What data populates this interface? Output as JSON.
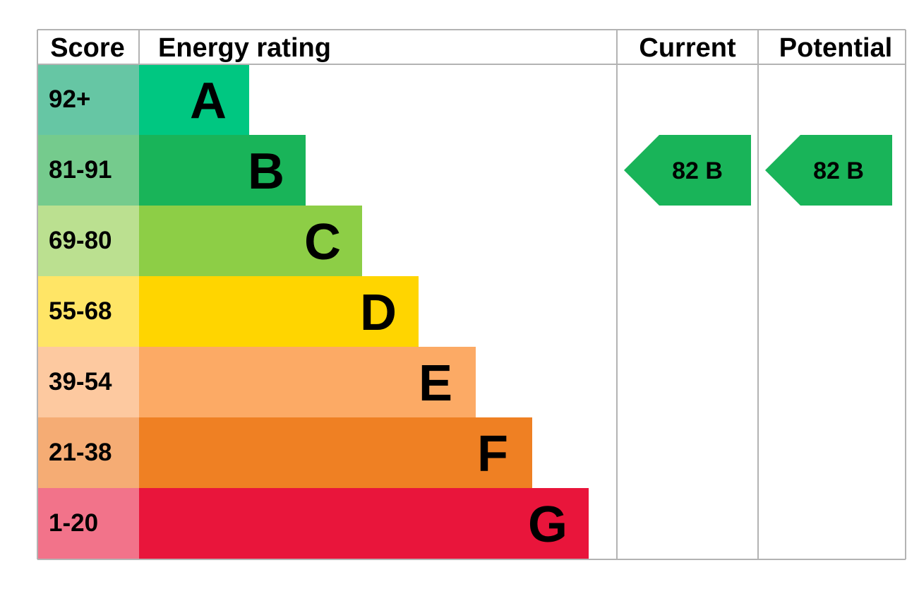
{
  "chart_data": {
    "type": "bar",
    "headers": {
      "score": "Score",
      "energy_rating": "Energy rating",
      "current": "Current",
      "potential": "Potential"
    },
    "bands": [
      {
        "letter": "A",
        "score_range": "92+",
        "color": "#00c781",
        "light_color": "#66c6a4"
      },
      {
        "letter": "B",
        "score_range": "81-91",
        "color": "#19b459",
        "light_color": "#75cb8d"
      },
      {
        "letter": "C",
        "score_range": "69-80",
        "color": "#8dce46",
        "light_color": "#bbe090"
      },
      {
        "letter": "D",
        "score_range": "55-68",
        "color": "#ffd500",
        "light_color": "#ffe566"
      },
      {
        "letter": "E",
        "score_range": "39-54",
        "color": "#fcaa65",
        "light_color": "#fdc9a0"
      },
      {
        "letter": "F",
        "score_range": "21-38",
        "color": "#ef8023",
        "light_color": "#f5ac74"
      },
      {
        "letter": "G",
        "score_range": "1-20",
        "color": "#e9153b",
        "light_color": "#f2738a"
      }
    ],
    "current": {
      "value": 82,
      "band": "B",
      "label": "82  B",
      "color": "#19b459"
    },
    "potential": {
      "value": 82,
      "band": "B",
      "label": "82  B",
      "color": "#19b459"
    }
  }
}
